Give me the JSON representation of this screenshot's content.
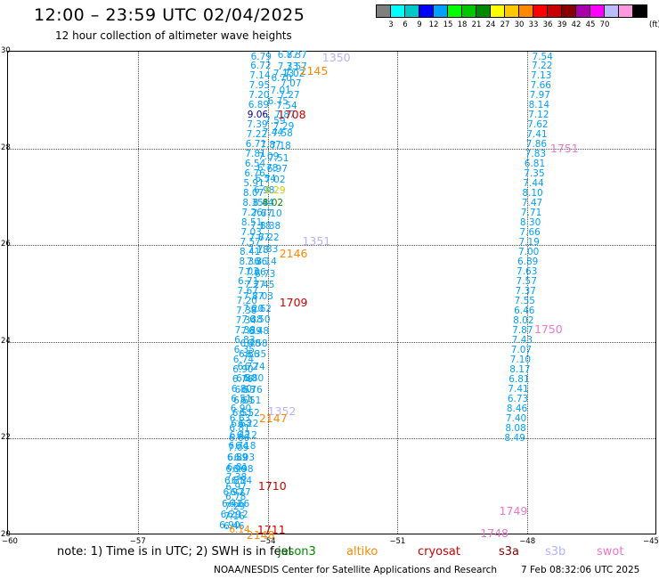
{
  "title": "12:00 – 23:59 UTC 02/04/2025",
  "subtitle": "12 hour collection of altimeter wave heights",
  "colorbar": {
    "colors": [
      "#7f7f7f",
      "#00ffff",
      "#00c8c8",
      "#0000ff",
      "#00a0ff",
      "#00ff00",
      "#00c800",
      "#008800",
      "#ffff00",
      "#ffc800",
      "#ff8800",
      "#ff0000",
      "#c80000",
      "#880000",
      "#aa00aa",
      "#ff00ff",
      "#bbbbff",
      "#ff99dd",
      "#000000"
    ],
    "labels": [
      "3",
      "6",
      "9",
      "12",
      "15",
      "18",
      "21",
      "24",
      "27",
      "30",
      "33",
      "36",
      "39",
      "42",
      "45",
      "70"
    ],
    "unit": "(ft)"
  },
  "axes": {
    "lat_labels": [
      "30",
      "28",
      "26",
      "24",
      "22",
      "20"
    ],
    "lon_labels": [
      "−60",
      "−57",
      "−54",
      "−51",
      "−48",
      "−45"
    ]
  },
  "track_a": [
    {
      "v": "6.79",
      "lat": 29.88,
      "lon": -54.37
    },
    {
      "v": "6.72",
      "lat": 29.68,
      "lon": -54.38
    },
    {
      "v": "7.14",
      "lat": 29.48,
      "lon": -54.4
    },
    {
      "v": "7.95",
      "lat": 29.28,
      "lon": -54.41
    },
    {
      "v": "7.20",
      "lat": 29.08,
      "lon": -54.42
    },
    {
      "v": "6.89",
      "lat": 28.88,
      "lon": -54.43
    },
    {
      "v": "9.06",
      "lat": 28.67,
      "lon": -54.45,
      "c": "#000088"
    },
    {
      "v": "7.39",
      "lat": 28.47,
      "lon": -54.46
    },
    {
      "v": "7.22",
      "lat": 28.26,
      "lon": -54.47
    },
    {
      "v": "6.71",
      "lat": 28.06,
      "lon": -54.49
    },
    {
      "v": "7.81",
      "lat": 27.86,
      "lon": -54.5
    },
    {
      "v": "6.54",
      "lat": 27.66,
      "lon": -54.51
    },
    {
      "v": "6.76",
      "lat": 27.46,
      "lon": -54.52
    },
    {
      "v": "5.91",
      "lat": 27.25,
      "lon": -54.54
    },
    {
      "v": "8.07",
      "lat": 27.05,
      "lon": -54.55
    },
    {
      "v": "8.35",
      "lat": 26.85,
      "lon": -54.56
    },
    {
      "v": "7.26",
      "lat": 26.65,
      "lon": -54.58
    },
    {
      "v": "8.51",
      "lat": 26.45,
      "lon": -54.59
    },
    {
      "v": "7.03",
      "lat": 26.24,
      "lon": -54.6
    },
    {
      "v": "7.57",
      "lat": 26.04,
      "lon": -54.62
    },
    {
      "v": "8.41",
      "lat": 25.84,
      "lon": -54.63
    },
    {
      "v": "8.36",
      "lat": 25.64,
      "lon": -54.64
    },
    {
      "v": "7.03",
      "lat": 25.43,
      "lon": -54.66
    },
    {
      "v": "6.71",
      "lat": 25.23,
      "lon": -54.67
    },
    {
      "v": "7.67",
      "lat": 25.03,
      "lon": -54.68
    },
    {
      "v": "7.20",
      "lat": 24.83,
      "lon": -54.7
    },
    {
      "v": "7.38",
      "lat": 24.62,
      "lon": -54.71
    },
    {
      "v": "7.34",
      "lat": 24.42,
      "lon": -54.72
    },
    {
      "v": "7.38",
      "lat": 24.22,
      "lon": -54.74
    },
    {
      "v": "6.83",
      "lat": 24.02,
      "lon": -54.75
    },
    {
      "v": "6.35",
      "lat": 23.81,
      "lon": -54.76
    },
    {
      "v": "6.74",
      "lat": 23.61,
      "lon": -54.78
    },
    {
      "v": "6.90",
      "lat": 23.41,
      "lon": -54.79
    },
    {
      "v": "6.76",
      "lat": 23.21,
      "lon": -54.8
    },
    {
      "v": "6.80",
      "lat": 23.0,
      "lon": -54.82
    },
    {
      "v": "6.51",
      "lat": 22.8,
      "lon": -54.83
    },
    {
      "v": "6.90",
      "lat": 22.6,
      "lon": -54.84
    },
    {
      "v": "6.63",
      "lat": 22.4,
      "lon": -54.86
    },
    {
      "v": "6.81",
      "lat": 22.2,
      "lon": -54.87
    },
    {
      "v": "6.66",
      "lat": 21.99,
      "lon": -54.88
    },
    {
      "v": "7.09",
      "lat": 21.79,
      "lon": -54.9
    },
    {
      "v": "6.82",
      "lat": 21.59,
      "lon": -54.91
    },
    {
      "v": "6.81",
      "lat": 21.39,
      "lon": -54.92
    },
    {
      "v": "7.38",
      "lat": 21.18,
      "lon": -54.94
    },
    {
      "v": "6.97",
      "lat": 20.98,
      "lon": -54.95
    },
    {
      "v": "6.78",
      "lat": 20.78,
      "lon": -54.96
    },
    {
      "v": "7.29",
      "lat": 20.58,
      "lon": -54.98
    },
    {
      "v": "7.16",
      "lat": 20.37,
      "lon": -54.99
    },
    {
      "v": "6.46",
      "lat": 20.17,
      "lon": -55.0
    }
  ],
  "track_b": [
    {
      "v": "6.87",
      "lat": 29.9,
      "lon": -53.75
    },
    {
      "v": "7.37",
      "lat": 29.9,
      "lon": -53.55
    },
    {
      "v": "7.33",
      "lat": 29.67,
      "lon": -53.75
    },
    {
      "v": "7.57",
      "lat": 29.67,
      "lon": -53.55
    },
    {
      "v": "7.13",
      "lat": 29.52,
      "lon": -53.85
    },
    {
      "v": "7.02",
      "lat": 29.52,
      "lon": -53.6
    },
    {
      "v": "6.70",
      "lat": 29.42,
      "lon": -53.9
    },
    {
      "v": "7.07",
      "lat": 29.32,
      "lon": -53.68
    },
    {
      "v": "7.01",
      "lat": 29.18,
      "lon": -53.92
    },
    {
      "v": "7.27",
      "lat": 29.08,
      "lon": -53.72
    },
    {
      "v": "6.75",
      "lat": 28.95,
      "lon": -53.98
    },
    {
      "v": "7.54",
      "lat": 28.85,
      "lon": -53.78
    },
    {
      "v": "7.87",
      "lat": 28.68,
      "lon": -53.82
    },
    {
      "v": "7.59",
      "lat": 28.55,
      "lon": -54.05
    },
    {
      "v": "7.29",
      "lat": 28.43,
      "lon": -53.85
    },
    {
      "v": "7.44",
      "lat": 28.3,
      "lon": -54.1
    },
    {
      "v": "7.58",
      "lat": 28.28,
      "lon": -53.88
    },
    {
      "v": "7.87",
      "lat": 28.05,
      "lon": -54.15
    },
    {
      "v": "7.18",
      "lat": 28.03,
      "lon": -53.92
    },
    {
      "v": "7.09",
      "lat": 27.8,
      "lon": -54.2
    },
    {
      "v": "7.51",
      "lat": 27.78,
      "lon": -53.97
    },
    {
      "v": "6.78",
      "lat": 27.57,
      "lon": -54.22
    },
    {
      "v": "6.97",
      "lat": 27.55,
      "lon": -54.0
    },
    {
      "v": "6.54",
      "lat": 27.35,
      "lon": -54.27
    },
    {
      "v": "7.02",
      "lat": 27.33,
      "lon": -54.05
    },
    {
      "v": "6.98",
      "lat": 27.1,
      "lon": -54.3
    },
    {
      "v": "8.29",
      "lat": 27.1,
      "lon": -54.05,
      "c": "#cccc00"
    },
    {
      "v": "8.44",
      "lat": 26.85,
      "lon": -54.32
    },
    {
      "v": "8.02",
      "lat": 26.85,
      "lon": -54.1,
      "c": "#008800"
    },
    {
      "v": "7.67",
      "lat": 26.63,
      "lon": -54.35
    },
    {
      "v": "7.10",
      "lat": 26.63,
      "lon": -54.13
    },
    {
      "v": "7.18",
      "lat": 26.38,
      "lon": -54.38
    },
    {
      "v": "8.38",
      "lat": 26.38,
      "lon": -54.16
    },
    {
      "v": "7.67",
      "lat": 26.13,
      "lon": -54.41
    },
    {
      "v": "7.22",
      "lat": 26.13,
      "lon": -54.19
    },
    {
      "v": "7.18",
      "lat": 25.88,
      "lon": -54.44
    },
    {
      "v": "7.83",
      "lat": 25.9,
      "lon": -54.22
    },
    {
      "v": "7.36",
      "lat": 25.64,
      "lon": -54.47
    },
    {
      "v": "8.14",
      "lat": 25.64,
      "lon": -54.25
    },
    {
      "v": "7.06",
      "lat": 25.42,
      "lon": -54.5
    },
    {
      "v": "6.73",
      "lat": 25.38,
      "lon": -54.28
    },
    {
      "v": "7.27",
      "lat": 25.15,
      "lon": -54.52
    },
    {
      "v": "7.45",
      "lat": 25.15,
      "lon": -54.3
    },
    {
      "v": "7.87",
      "lat": 24.92,
      "lon": -54.55
    },
    {
      "v": "7.03",
      "lat": 24.92,
      "lon": -54.33
    },
    {
      "v": "7.20",
      "lat": 24.66,
      "lon": -54.55
    },
    {
      "v": "6.62",
      "lat": 24.66,
      "lon": -54.37
    },
    {
      "v": "7.38",
      "lat": 24.43,
      "lon": -54.58
    },
    {
      "v": "6.50",
      "lat": 24.43,
      "lon": -54.4
    },
    {
      "v": "7.39",
      "lat": 24.2,
      "lon": -54.6
    },
    {
      "v": "6.48",
      "lat": 24.2,
      "lon": -54.43
    },
    {
      "v": "6.48",
      "lat": 23.94,
      "lon": -54.62
    },
    {
      "v": "6.58",
      "lat": 23.94,
      "lon": -54.46
    },
    {
      "v": "6.66",
      "lat": 23.72,
      "lon": -54.65
    },
    {
      "v": "6.35",
      "lat": 23.72,
      "lon": -54.49
    },
    {
      "v": "6.72",
      "lat": 23.47,
      "lon": -54.68
    },
    {
      "v": "6.74",
      "lat": 23.47,
      "lon": -54.52
    },
    {
      "v": "6.80",
      "lat": 23.23,
      "lon": -54.71
    },
    {
      "v": "6.80",
      "lat": 23.23,
      "lon": -54.55
    },
    {
      "v": "6.53",
      "lat": 22.98,
      "lon": -54.74
    },
    {
      "v": "6.76",
      "lat": 22.98,
      "lon": -54.58
    },
    {
      "v": "6.61",
      "lat": 22.76,
      "lon": -54.77
    },
    {
      "v": "6.51",
      "lat": 22.76,
      "lon": -54.61
    },
    {
      "v": "6.51",
      "lat": 22.5,
      "lon": -54.8
    },
    {
      "v": "6.52",
      "lat": 22.5,
      "lon": -54.64
    },
    {
      "v": "6.63",
      "lat": 22.28,
      "lon": -54.83
    },
    {
      "v": "6.22",
      "lat": 22.28,
      "lon": -54.67
    },
    {
      "v": "6.42",
      "lat": 22.05,
      "lon": -54.86
    },
    {
      "v": "6.12",
      "lat": 22.05,
      "lon": -54.7
    },
    {
      "v": "6.74",
      "lat": 21.82,
      "lon": -54.89
    },
    {
      "v": "6.18",
      "lat": 21.82,
      "lon": -54.73
    },
    {
      "v": "6.59",
      "lat": 21.58,
      "lon": -54.92
    },
    {
      "v": "6.93",
      "lat": 21.58,
      "lon": -54.76
    },
    {
      "v": "6.96",
      "lat": 21.35,
      "lon": -54.95
    },
    {
      "v": "6.98",
      "lat": 21.35,
      "lon": -54.79
    },
    {
      "v": "6.85",
      "lat": 21.1,
      "lon": -54.98
    },
    {
      "v": "6.84",
      "lat": 21.1,
      "lon": -54.82
    },
    {
      "v": "6.97",
      "lat": 20.87,
      "lon": -55.01
    },
    {
      "v": "6.27",
      "lat": 20.87,
      "lon": -54.85
    },
    {
      "v": "6.42",
      "lat": 20.63,
      "lon": -55.04
    },
    {
      "v": "6.66",
      "lat": 20.63,
      "lon": -54.88
    },
    {
      "v": "6.29",
      "lat": 20.4,
      "lon": -55.07
    },
    {
      "v": "6.12",
      "lat": 20.4,
      "lon": -54.91
    },
    {
      "v": "6.90",
      "lat": 20.18,
      "lon": -55.1
    },
    {
      "v": "6.14",
      "lat": 20.1,
      "lon": -54.87,
      "c": "#ff8800"
    }
  ],
  "track_c": [
    {
      "v": "7.54",
      "lat": 29.88,
      "lon": -47.87
    },
    {
      "v": "7.22",
      "lat": 29.68,
      "lon": -47.88
    },
    {
      "v": "7.13",
      "lat": 29.48,
      "lon": -47.9
    },
    {
      "v": "7.66",
      "lat": 29.28,
      "lon": -47.91
    },
    {
      "v": "7.97",
      "lat": 29.08,
      "lon": -47.93
    },
    {
      "v": "8.14",
      "lat": 28.88,
      "lon": -47.95
    },
    {
      "v": "7.12",
      "lat": 28.67,
      "lon": -47.96
    },
    {
      "v": "7.62",
      "lat": 28.47,
      "lon": -47.98
    },
    {
      "v": "7.41",
      "lat": 28.26,
      "lon": -48.0
    },
    {
      "v": "7.86",
      "lat": 28.06,
      "lon": -48.01
    },
    {
      "v": "7.83",
      "lat": 27.86,
      "lon": -48.03
    },
    {
      "v": "6.81",
      "lat": 27.66,
      "lon": -48.05
    },
    {
      "v": "7.35",
      "lat": 27.46,
      "lon": -48.06
    },
    {
      "v": "7.44",
      "lat": 27.25,
      "lon": -48.08
    },
    {
      "v": "8.10",
      "lat": 27.05,
      "lon": -48.1
    },
    {
      "v": "7.47",
      "lat": 26.85,
      "lon": -48.11
    },
    {
      "v": "7.71",
      "lat": 26.65,
      "lon": -48.13
    },
    {
      "v": "8.30",
      "lat": 26.45,
      "lon": -48.15
    },
    {
      "v": "7.66",
      "lat": 26.24,
      "lon": -48.16
    },
    {
      "v": "7.19",
      "lat": 26.04,
      "lon": -48.18
    },
    {
      "v": "7.00",
      "lat": 25.84,
      "lon": -48.19
    },
    {
      "v": "6.89",
      "lat": 25.64,
      "lon": -48.21
    },
    {
      "v": "7.63",
      "lat": 25.43,
      "lon": -48.23
    },
    {
      "v": "7.57",
      "lat": 25.23,
      "lon": -48.24
    },
    {
      "v": "7.37",
      "lat": 25.03,
      "lon": -48.26
    },
    {
      "v": "7.55",
      "lat": 24.83,
      "lon": -48.28
    },
    {
      "v": "6.46",
      "lat": 24.62,
      "lon": -48.29
    },
    {
      "v": "8.02",
      "lat": 24.42,
      "lon": -48.31
    },
    {
      "v": "7.87",
      "lat": 24.22,
      "lon": -48.33
    },
    {
      "v": "7.43",
      "lat": 24.02,
      "lon": -48.34
    },
    {
      "v": "7.07",
      "lat": 23.81,
      "lon": -48.36
    },
    {
      "v": "7.10",
      "lat": 23.61,
      "lon": -48.38
    },
    {
      "v": "8.17",
      "lat": 23.41,
      "lon": -48.39
    },
    {
      "v": "6.81",
      "lat": 23.21,
      "lon": -48.41
    },
    {
      "v": "7.41",
      "lat": 23.0,
      "lon": -48.43
    },
    {
      "v": "6.73",
      "lat": 22.8,
      "lon": -48.44
    },
    {
      "v": "8.46",
      "lat": 22.6,
      "lon": -48.46
    },
    {
      "v": "7.40",
      "lat": 22.4,
      "lon": -48.48
    },
    {
      "v": "8.08",
      "lat": 22.2,
      "lon": -48.49
    },
    {
      "v": "8.49",
      "lat": 21.99,
      "lon": -48.51
    }
  ],
  "pass_labels": [
    {
      "t": "1350",
      "c": "#b4b4ff",
      "lat": 29.85,
      "lon": -52.72
    },
    {
      "t": "2145",
      "c": "#ff8800",
      "lat": 29.57,
      "lon": -53.24
    },
    {
      "t": "1708",
      "c": "#d00000",
      "lat": 28.68,
      "lon": -53.75
    },
    {
      "t": "1751",
      "c": "#ee77cc",
      "lat": 27.98,
      "lon": -47.45
    },
    {
      "t": "1351",
      "c": "#b4b4ff",
      "lat": 26.05,
      "lon": -53.18
    },
    {
      "t": "2146",
      "c": "#ff8800",
      "lat": 25.8,
      "lon": -53.71
    },
    {
      "t": "1709",
      "c": "#d00000",
      "lat": 24.78,
      "lon": -53.71
    },
    {
      "t": "1750",
      "c": "#ee77cc",
      "lat": 24.24,
      "lon": -47.82
    },
    {
      "t": "1352",
      "c": "#b4b4ff",
      "lat": 22.54,
      "lon": -53.98
    },
    {
      "t": "2147",
      "c": "#ff8800",
      "lat": 22.39,
      "lon": -54.18
    },
    {
      "t": "1710",
      "c": "#d00000",
      "lat": 21.0,
      "lon": -54.2
    },
    {
      "t": "1749",
      "c": "#ee77cc",
      "lat": 20.47,
      "lon": -48.63
    },
    {
      "t": "1748",
      "c": "#ee77cc",
      "lat": 20.02,
      "lon": -49.07
    },
    {
      "t": "1711",
      "c": "#d00000",
      "lat": 20.1,
      "lon": -54.22
    },
    {
      "t": "2148",
      "c": "#ff8800",
      "lat": 19.98,
      "lon": -54.47
    }
  ],
  "note": "note:  1) Time is in UTC;  2) SWH is in feet",
  "legend": [
    {
      "t": "jason3",
      "c": "#008800"
    },
    {
      "t": "altiko",
      "c": "#ff8800"
    },
    {
      "t": "cryosat",
      "c": "#d00000"
    },
    {
      "t": "s3a",
      "c": "#880000"
    },
    {
      "t": "s3b",
      "c": "#b4b4ff"
    },
    {
      "t": "swot",
      "c": "#ee77cc"
    }
  ],
  "credit": "NOAA/NESDIS Center for Satellite Applications and Research",
  "timestamp": "7 Feb 08:32:06 UTC 2025"
}
